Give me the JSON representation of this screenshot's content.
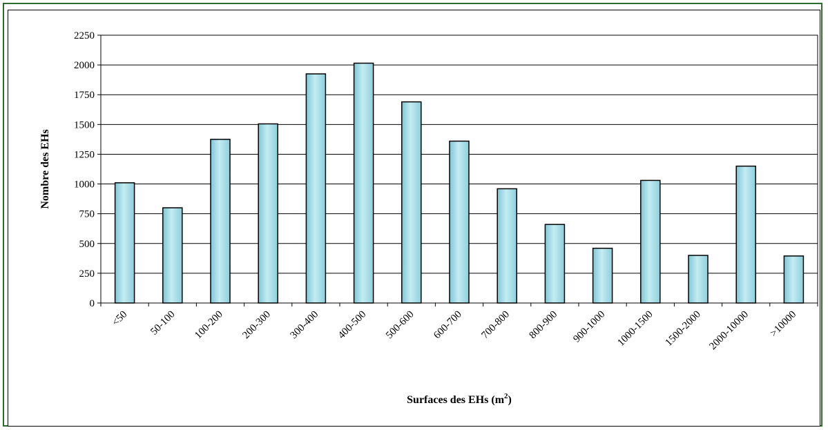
{
  "chart_data": {
    "type": "bar",
    "title": "",
    "xlabel": "Surfaces des EHs (m",
    "xlabel_sup": "2",
    "xlabel_end": ")",
    "ylabel": "Nombre des EHs",
    "ylim": [
      0,
      2250
    ],
    "yticks": [
      "0",
      "250",
      "500",
      "750",
      "1000",
      "1250",
      "1500",
      "1750",
      "2000",
      "2250"
    ],
    "grid": true,
    "legend": "none",
    "categories": [
      "<50",
      "50-100",
      "100-200",
      "200-300",
      "300-400",
      "400-500",
      "500-600",
      "600-700",
      "700-800",
      "800-900",
      "900-1000",
      "1000-1500",
      "1500-2000",
      "2000-10000",
      ">10000"
    ],
    "values": [
      1010,
      800,
      1375,
      1505,
      1925,
      2015,
      1690,
      1360,
      960,
      660,
      460,
      1030,
      400,
      1150,
      395
    ],
    "bar_color": "#9fd8e3",
    "bar_border": "#000000",
    "frame_color": "#2e6b2e"
  }
}
